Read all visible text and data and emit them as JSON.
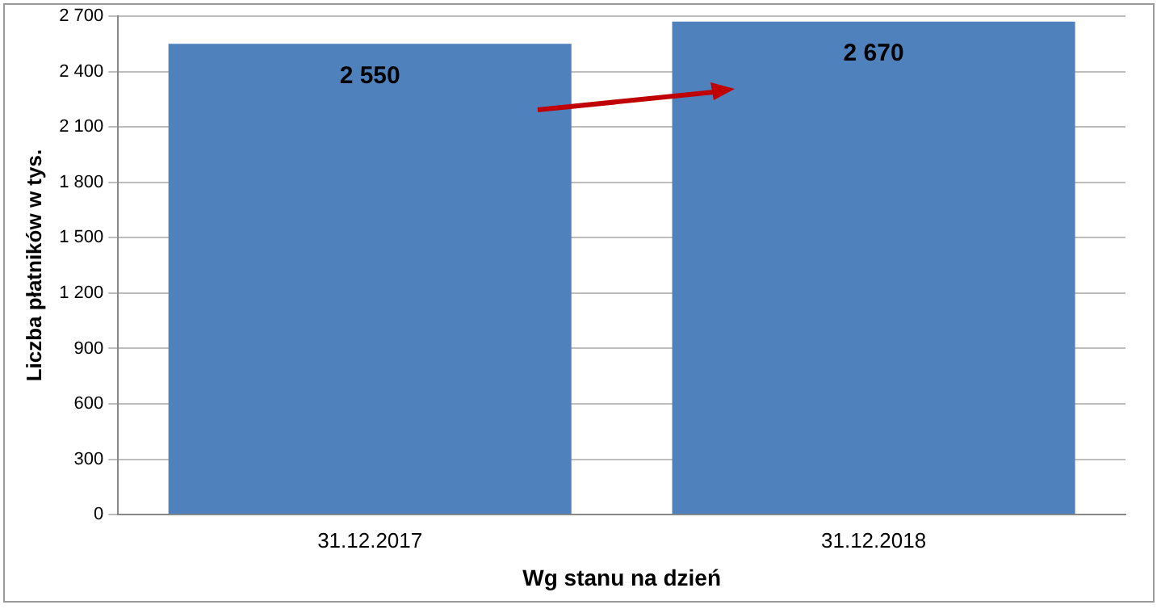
{
  "chart_data": {
    "type": "bar",
    "xlabel": "Wg stanu na dzień",
    "ylabel": "Liczba płatników w tys.",
    "categories": [
      "31.12.2017",
      "31.12.2018"
    ],
    "values": [
      2550,
      2670
    ],
    "value_labels": [
      "2 550",
      "2 670"
    ],
    "color": "#4f81bd",
    "ylim": [
      0,
      2700
    ],
    "yticks": [
      0,
      300,
      600,
      900,
      {
        "value": 1200,
        "label": "1 200"
      },
      {
        "value": 1500,
        "label": "1 500"
      },
      {
        "value": 1800,
        "label": "1 800"
      },
      {
        "value": 2100,
        "label": "2 100"
      },
      {
        "value": 2400,
        "label": "2 400"
      },
      {
        "value": 2700,
        "label": "2 700"
      }
    ],
    "grid": "y",
    "legend": false
  }
}
